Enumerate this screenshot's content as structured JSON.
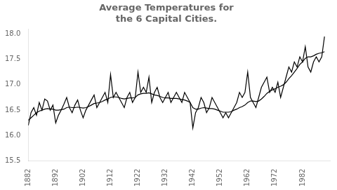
{
  "chart_data": {
    "type": "line",
    "title": "Average Temperatures for\nthe 6 Capital Cities.",
    "x": [
      1882,
      1883,
      1884,
      1885,
      1886,
      1887,
      1888,
      1889,
      1890,
      1891,
      1892,
      1893,
      1894,
      1895,
      1896,
      1897,
      1898,
      1899,
      1900,
      1901,
      1902,
      1903,
      1904,
      1905,
      1906,
      1907,
      1908,
      1909,
      1910,
      1911,
      1912,
      1913,
      1914,
      1915,
      1916,
      1917,
      1918,
      1919,
      1920,
      1921,
      1922,
      1923,
      1924,
      1925,
      1926,
      1927,
      1928,
      1929,
      1930,
      1931,
      1932,
      1933,
      1934,
      1935,
      1936,
      1937,
      1938,
      1939,
      1940,
      1941,
      1942,
      1943,
      1944,
      1945,
      1946,
      1947,
      1948,
      1949,
      1950,
      1951,
      1952,
      1953,
      1954,
      1955,
      1956,
      1957,
      1958,
      1959,
      1960,
      1961,
      1962,
      1963,
      1964,
      1965,
      1966,
      1967,
      1968,
      1969,
      1970,
      1971,
      1972,
      1973,
      1974,
      1975,
      1976,
      1977,
      1978,
      1979,
      1980,
      1981,
      1982,
      1983,
      1984,
      1985,
      1986,
      1987,
      1988,
      1989,
      1990
    ],
    "series": [
      {
        "color": "#000000",
        "values": [
          16.2,
          16.45,
          16.55,
          16.4,
          16.65,
          16.5,
          16.72,
          16.68,
          16.5,
          16.6,
          16.25,
          16.4,
          16.5,
          16.62,
          16.75,
          16.55,
          16.45,
          16.6,
          16.7,
          16.5,
          16.35,
          16.5,
          16.6,
          16.7,
          16.8,
          16.55,
          16.65,
          16.75,
          16.85,
          16.65,
          17.2,
          16.75,
          16.85,
          16.75,
          16.65,
          16.55,
          16.75,
          16.85,
          16.65,
          16.75,
          17.25,
          16.85,
          16.95,
          16.85,
          17.15,
          16.65,
          16.85,
          16.95,
          16.75,
          16.65,
          16.75,
          16.85,
          16.65,
          16.75,
          16.85,
          16.75,
          16.65,
          16.85,
          16.75,
          16.65,
          16.15,
          16.45,
          16.55,
          16.75,
          16.65,
          16.45,
          16.55,
          16.75,
          16.65,
          16.55,
          16.45,
          16.35,
          16.45,
          16.35,
          16.45,
          16.55,
          16.65,
          16.85,
          16.75,
          16.85,
          17.25,
          16.75,
          16.65,
          16.55,
          16.75,
          16.95,
          17.05,
          17.15,
          16.85,
          16.95,
          16.85,
          17.05,
          16.75,
          16.95,
          17.15,
          17.35,
          17.25,
          17.45,
          17.35,
          17.55,
          17.45,
          17.75,
          17.35,
          17.25,
          17.45,
          17.55,
          17.45,
          17.55,
          17.95
        ]
      },
      {
        "color": "#000000",
        "values": [
          16.3,
          16.35,
          16.4,
          16.45,
          16.48,
          16.5,
          16.52,
          16.53,
          16.52,
          16.52,
          16.5,
          16.5,
          16.51,
          16.52,
          16.55,
          16.56,
          16.55,
          16.55,
          16.56,
          16.55,
          16.54,
          16.55,
          16.57,
          16.6,
          16.63,
          16.64,
          16.65,
          16.67,
          16.7,
          16.72,
          16.75,
          16.76,
          16.76,
          16.75,
          16.73,
          16.72,
          16.73,
          16.74,
          16.74,
          16.75,
          16.8,
          16.82,
          16.83,
          16.83,
          16.84,
          16.82,
          16.8,
          16.79,
          16.77,
          16.75,
          16.74,
          16.74,
          16.73,
          16.73,
          16.73,
          16.72,
          16.71,
          16.7,
          16.68,
          16.65,
          16.55,
          16.52,
          16.52,
          16.54,
          16.55,
          16.54,
          16.53,
          16.53,
          16.52,
          16.5,
          16.48,
          16.46,
          16.46,
          16.46,
          16.47,
          16.5,
          16.52,
          16.55,
          16.57,
          16.6,
          16.65,
          16.68,
          16.68,
          16.67,
          16.68,
          16.72,
          16.77,
          16.83,
          16.87,
          16.9,
          16.92,
          16.95,
          16.97,
          17.0,
          17.05,
          17.12,
          17.18,
          17.25,
          17.32,
          17.4,
          17.45,
          17.52,
          17.55,
          17.55,
          17.57,
          17.6,
          17.62,
          17.63,
          17.65
        ]
      }
    ],
    "xlim": [
      1882,
      1992
    ],
    "ylim": [
      15.5,
      18.1
    ],
    "xticks": [
      1882,
      1892,
      1902,
      1912,
      1922,
      1932,
      1942,
      1952,
      1962,
      1972,
      1982
    ],
    "yticks": [
      15.5,
      {
        "value": 16,
        "label": "16.0"
      },
      16.5,
      {
        "value": 17,
        "label": "17.0"
      },
      17.5,
      {
        "value": 18,
        "label": "18.0"
      }
    ],
    "grid": false
  }
}
